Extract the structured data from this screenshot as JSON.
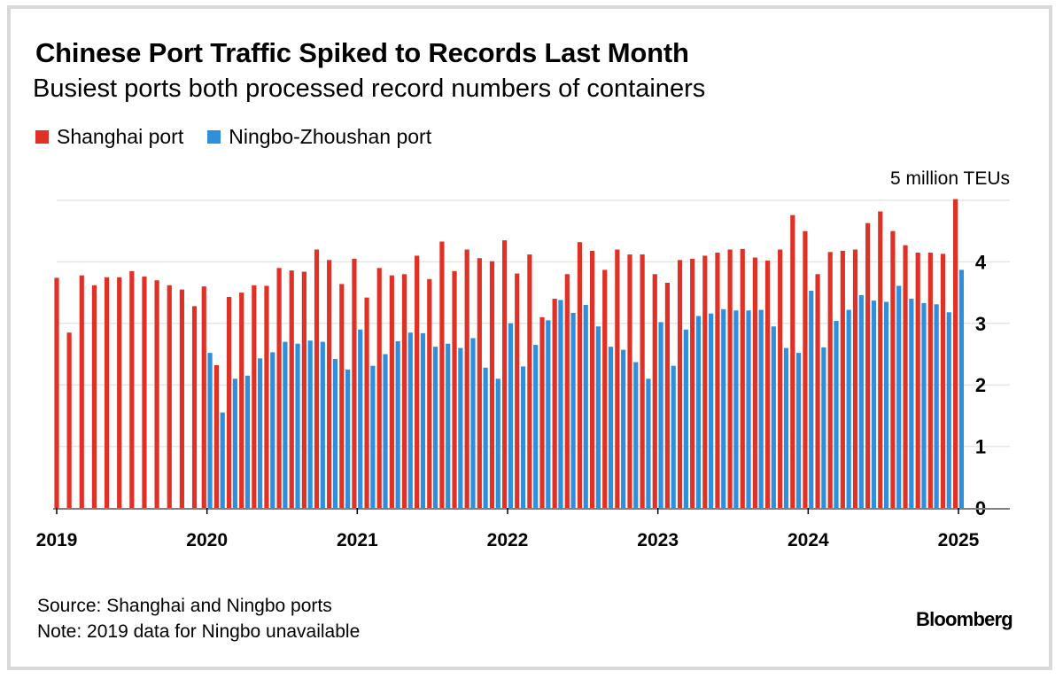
{
  "header": {
    "title": "Chinese Port Traffic Spiked to Records Last Month",
    "subtitle": "Busiest ports both processed record numbers of containers"
  },
  "footer": {
    "source": "Source: Shanghai and Ningbo ports",
    "note": "Note: 2019 data for Ningbo unavailable",
    "brand": "Bloomberg"
  },
  "colors": {
    "shanghai": "#e03127",
    "ningbo": "#2f8fdc",
    "grid": "#e6e6e6",
    "axis": "#7f7f7f"
  },
  "chart_data": {
    "type": "bar",
    "title": "Chinese Port Traffic Spiked to Records Last Month",
    "subtitle": "Busiest ports both processed record numbers of containers",
    "y_unit_label": "5 million TEUs",
    "ylim": [
      0,
      5
    ],
    "y_ticks": [
      0,
      1,
      2,
      3,
      4
    ],
    "grid": true,
    "legend_position": "top-left",
    "x_tick_labels": [
      "2019",
      "2020",
      "2021",
      "2022",
      "2023",
      "2024",
      "2025"
    ],
    "x_start": "2019-01",
    "x_end": "2025-01",
    "series": [
      {
        "name": "Shanghai port",
        "color": "#e03127",
        "start": "2019-01",
        "values": [
          3.74,
          2.85,
          3.78,
          3.62,
          3.75,
          3.75,
          3.85,
          3.76,
          3.7,
          3.62,
          3.55,
          3.28,
          3.6,
          2.32,
          3.43,
          3.5,
          3.62,
          3.61,
          3.9,
          3.86,
          3.84,
          4.2,
          4.03,
          3.64,
          4.05,
          3.42,
          3.9,
          3.78,
          3.8,
          4.1,
          3.72,
          4.33,
          3.85,
          4.2,
          4.06,
          4.01,
          4.35,
          3.81,
          4.12,
          3.1,
          3.4,
          3.8,
          4.32,
          4.18,
          3.87,
          4.2,
          4.12,
          4.12,
          3.8,
          3.66,
          4.03,
          4.05,
          4.1,
          4.15,
          4.2,
          4.21,
          4.07,
          4.02,
          4.2,
          4.76,
          4.5,
          3.8,
          4.16,
          4.18,
          4.2,
          4.63,
          4.82,
          4.5,
          4.27,
          4.15,
          4.15,
          4.13,
          5.02
        ]
      },
      {
        "name": "Ningbo-Zhoushan port",
        "color": "#2f8fdc",
        "start": "2020-01",
        "values": [
          2.52,
          1.55,
          2.1,
          2.15,
          2.43,
          2.53,
          2.7,
          2.67,
          2.72,
          2.7,
          2.42,
          2.25,
          2.9,
          2.31,
          2.5,
          2.71,
          2.85,
          2.84,
          2.62,
          2.67,
          2.6,
          2.76,
          2.28,
          2.1,
          3.0,
          2.3,
          2.65,
          3.05,
          3.38,
          3.17,
          3.3,
          2.95,
          2.62,
          2.57,
          2.37,
          2.1,
          3.02,
          2.31,
          2.9,
          3.12,
          3.16,
          3.23,
          3.21,
          3.21,
          3.22,
          2.95,
          2.6,
          2.52,
          3.53,
          2.61,
          3.04,
          3.22,
          3.46,
          3.37,
          3.35,
          3.61,
          3.4,
          3.33,
          3.31,
          3.18,
          3.87
        ]
      }
    ]
  }
}
